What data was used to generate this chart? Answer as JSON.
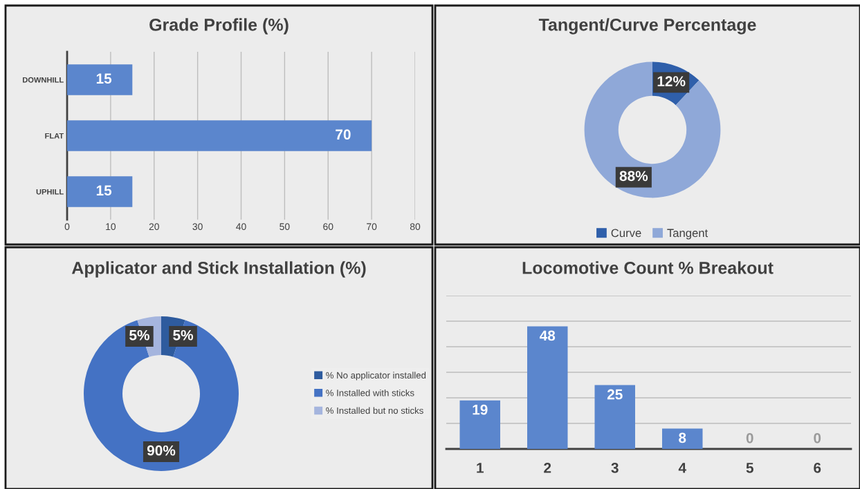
{
  "chart_data": [
    {
      "type": "bar",
      "orientation": "horizontal",
      "title": "Grade Profile (%)",
      "categories": [
        "DOWNHILL",
        "FLAT",
        "UPHILL"
      ],
      "values": [
        15,
        70,
        15
      ],
      "color": "#5b86cd",
      "xlim": [
        0,
        80
      ],
      "xticks": [
        0,
        10,
        20,
        30,
        40,
        50,
        60,
        70,
        80
      ],
      "grid": "x",
      "data_labels": true
    },
    {
      "type": "donut",
      "title": "Tangent/Curve Percentage",
      "categories": [
        "Curve",
        "Tangent"
      ],
      "values": [
        12,
        88
      ],
      "colors": [
        "#2f5faa",
        "#8fa8d8"
      ],
      "value_labels": [
        "12%",
        "88%"
      ],
      "legend": "bottom"
    },
    {
      "type": "donut",
      "title": "Applicator and Stick Installation (%)",
      "categories": [
        "% No applicator installed",
        "% Installed with sticks",
        "% Installed but no sticks"
      ],
      "values": [
        5,
        90,
        5
      ],
      "colors": [
        "#2e5b9e",
        "#4472c4",
        "#a5b5de"
      ],
      "value_labels": [
        "5%",
        "90%",
        "5%"
      ],
      "legend": "right"
    },
    {
      "type": "bar",
      "title": "Locomotive Count % Breakout",
      "categories": [
        "1",
        "2",
        "3",
        "4",
        "5",
        "6"
      ],
      "values": [
        19,
        48,
        25,
        8,
        0,
        0
      ],
      "color": "#5b86cd",
      "ylim": [
        0,
        60
      ],
      "yticks": [
        {
          "value": 0,
          "label": null
        },
        {
          "value": 10,
          "label": null
        },
        {
          "value": 20,
          "label": null
        },
        {
          "value": 30,
          "label": null
        },
        {
          "value": 40,
          "label": null
        },
        {
          "value": 50,
          "label": null
        },
        {
          "value": 60,
          "label": null
        }
      ],
      "grid": "y",
      "tick_labels": "x",
      "data_labels": true
    }
  ]
}
